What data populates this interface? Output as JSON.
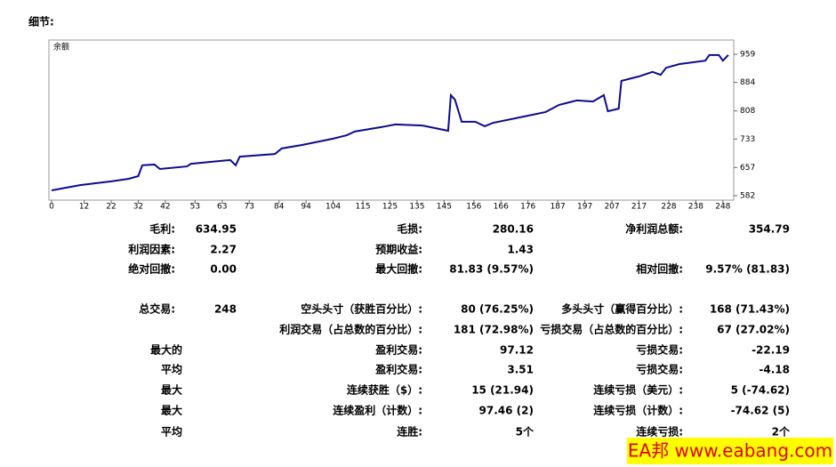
{
  "header": {
    "title": "细节:",
    "watermark": "EA邦 www.eabang.com"
  },
  "chart_data": {
    "type": "line",
    "label": "余额",
    "x": [
      0,
      10.5,
      22,
      28.5,
      32,
      33.5,
      38,
      40,
      50,
      51.5,
      66,
      68,
      69.5,
      82.5,
      85,
      92.5,
      104,
      109,
      112,
      122,
      127,
      137,
      146.5,
      147.5,
      149,
      151.5,
      156.5,
      160,
      163,
      174.5,
      182.5,
      187.5,
      194,
      200,
      204,
      205.5,
      209.5,
      210.5,
      217,
      222,
      225,
      227,
      232,
      241.5,
      243,
      246.5,
      248,
      250
    ],
    "series": [
      {
        "color": "#0b0b8f",
        "values": [
          596,
          610,
          620,
          627,
          634,
          663,
          665,
          653,
          660,
          667,
          677,
          663,
          686,
          693,
          708,
          717,
          734,
          743,
          753,
          765,
          772,
          769,
          755,
          850,
          838,
          779,
          779,
          767,
          776,
          793,
          805,
          824,
          836,
          833,
          850,
          807,
          814,
          888,
          900,
          912,
          904,
          923,
          933,
          942,
          957,
          957,
          942,
          957
        ]
      }
    ],
    "xlim": [
      -1,
      252
    ],
    "xticks": [
      0,
      12,
      22,
      32,
      42,
      53,
      63,
      73,
      84,
      94,
      104,
      115,
      125,
      135,
      145,
      156,
      166,
      176,
      187,
      197,
      207,
      217,
      228,
      238,
      248
    ],
    "ylim": [
      570,
      997
    ],
    "yticks": [
      582,
      657,
      733,
      808,
      884,
      959
    ]
  },
  "stats": {
    "rows": [
      [
        "毛利:",
        "634.95",
        "毛损:",
        "280.16",
        "净利润总额:",
        "354.79"
      ],
      [
        "利润因素:",
        "2.27",
        "预期收益:",
        "1.43",
        null,
        null
      ],
      [
        "绝对回撤:",
        "0.00",
        "最大回撤:",
        "81.83 (9.57%)",
        "相对回撤:",
        "9.57% (81.83)"
      ],
      [
        "总交易:",
        "248",
        "空头头寸（获胜百分比）:",
        "80 (76.25%)",
        "多头头寸（赢得百分比）:",
        "168 (71.43%)"
      ],
      [
        null,
        null,
        "利润交易（占总数的百分比）:",
        "181 (72.98%)",
        "亏损交易（占总数的百分比）:",
        "67 (27.02%)"
      ],
      [
        "最大的",
        null,
        "盈利交易:",
        "97.12",
        "亏损交易:",
        "-22.19"
      ],
      [
        "平均",
        null,
        "盈利交易:",
        "3.51",
        "亏损交易:",
        "-4.18"
      ],
      [
        "最大",
        null,
        "连续获胜（$）:",
        "15 (21.94)",
        "连续亏损（美元）:",
        "5 (-74.62)"
      ],
      [
        "最大",
        null,
        "连续盈利（计数）:",
        "97.46 (2)",
        "连续亏损（计数）:",
        "-74.62 (5)"
      ],
      [
        "平均",
        null,
        "连胜:",
        "5个",
        "连续亏损:",
        "2个"
      ]
    ]
  }
}
